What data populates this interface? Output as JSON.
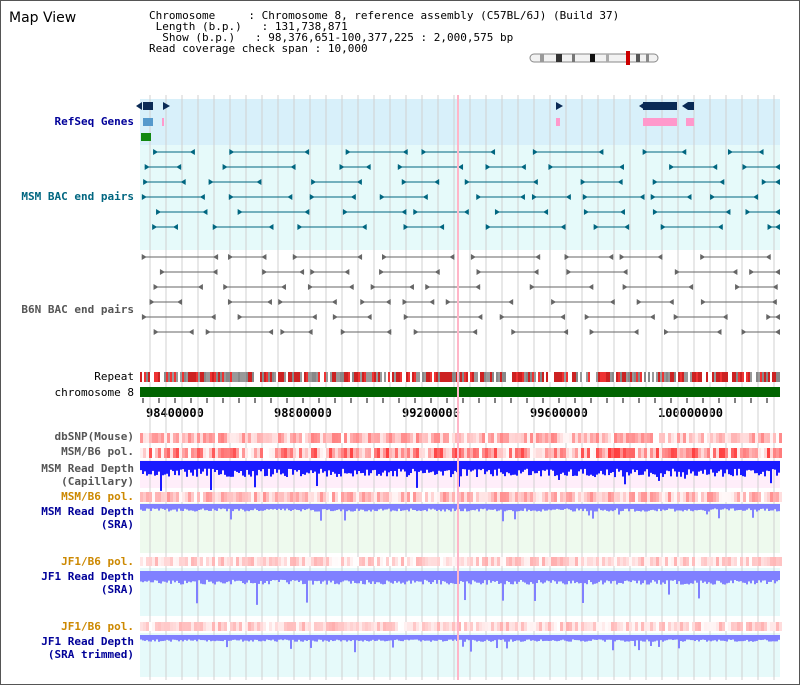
{
  "page": {
    "title": "Map View"
  },
  "info": {
    "chromosome_label": "Chromosome",
    "chromosome_value": "Chromosome 8, reference assembly (C57BL/6J) (Build 37)",
    "length_label": "Length (b.p.)",
    "length_value": "131,738,871",
    "show_label": "Show (b.p.)",
    "show_value": "98,376,651-100,377,225 : 2,000,575 bp",
    "coverage_label": "Read coverage check span",
    "coverage_value": "10,000"
  },
  "tracks": {
    "refseq": "RefSeq Genes",
    "msm_bac": "MSM BAC end pairs",
    "b6n_bac": "B6N BAC end pairs",
    "repeat": "Repeat",
    "chromosome": "chromosome 8",
    "dbsnp": "dbSNP(Mouse)",
    "msm_b6_pol_1": "MSM/B6 pol.",
    "msm_read_depth_cap_1": "MSM Read Depth",
    "msm_read_depth_cap_2": "(Capillary)",
    "msm_b6_pol_2": "MSM/B6 pol.",
    "msm_read_depth_sra_1": "MSM Read Depth",
    "msm_read_depth_sra_2": "(SRA)",
    "jf1_b6_pol_1": "JF1/B6 pol.",
    "jf1_read_depth_sra_1": "JF1 Read Depth",
    "jf1_read_depth_sra_2": "(SRA)",
    "jf1_b6_pol_2": "JF1/B6 pol.",
    "jf1_read_depth_trim_1": "JF1 Read Depth",
    "jf1_read_depth_trim_2": "(SRA trimmed)"
  },
  "axis": {
    "ticks": [
      "98400000",
      "98800000",
      "99200000",
      "99600000",
      "100000000"
    ]
  },
  "colors": {
    "refseq_bg": "#d8f0fa",
    "msm_bg": "#e6fafa",
    "b6n_bg": "#ffffff",
    "chromosome": "#006400",
    "msm_marker": "#006680",
    "b6n_marker": "#666666",
    "depth_capillary": "#1a1aff",
    "depth_sra": "#8080ff",
    "pol_red": "#ff0000"
  }
}
